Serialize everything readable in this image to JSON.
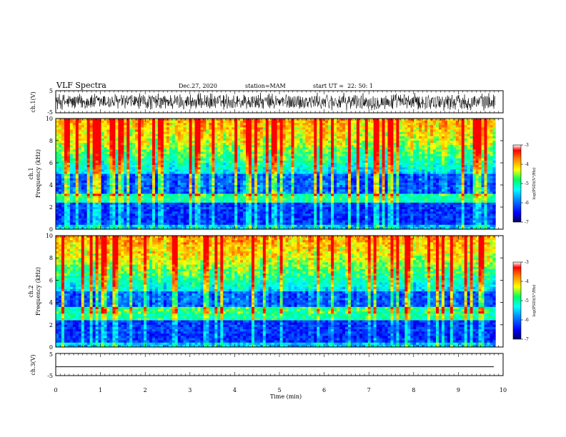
{
  "header": {
    "title": "VLF Spectra",
    "date": "Dec.27, 2020",
    "station": "station=MAM",
    "start": "start UT =  22: 50: 1"
  },
  "colors": {
    "scale": [
      "#000080",
      "#0000ff",
      "#0080ff",
      "#00ffff",
      "#00ff80",
      "#ffff00",
      "#ff8000",
      "#ff0000"
    ]
  },
  "chart_data": [
    {
      "type": "line",
      "name": "ch1-waveform",
      "ylabel": "ch.1(V)",
      "ylim": [
        -5,
        5
      ],
      "yticks": [
        "5",
        "-5"
      ],
      "xlim": [
        0,
        10
      ],
      "description_values": {
        "center": 0.0,
        "typical_amplitude": 3.5
      }
    },
    {
      "type": "heatmap",
      "name": "ch1-spectrogram",
      "ylabel_top": "ch.1",
      "ylabel_bottom": "Frequency (kHz)",
      "ylim": [
        0,
        10
      ],
      "yticks": [
        "0",
        "2",
        "4",
        "6",
        "8",
        "10"
      ],
      "xlim": [
        0,
        9.83
      ],
      "band_kHz": [
        2.4,
        3.2
      ],
      "colorbar": {
        "label": "log(PSD)(V²/Hz)",
        "range": [
          -7,
          -3
        ],
        "ticks": [
          "-3",
          "-4",
          "-5",
          "-6",
          "-7"
        ]
      }
    },
    {
      "type": "heatmap",
      "name": "ch2-spectrogram",
      "ylabel_top": "ch.2",
      "ylabel_bottom": "Frequency (kHz)",
      "ylim": [
        0,
        10
      ],
      "yticks": [
        "0",
        "2",
        "4",
        "6",
        "8",
        "10"
      ],
      "xlim": [
        0,
        9.83
      ],
      "band_kHz": [
        2.5,
        3.5
      ],
      "colorbar": {
        "label": "log(PSD)(V²/Hz)",
        "range": [
          -7,
          -3
        ],
        "ticks": [
          "-3",
          "-4",
          "-5",
          "-6",
          "-7"
        ]
      }
    },
    {
      "type": "line",
      "name": "ch3-waveform",
      "ylabel": "ch.3(V)",
      "ylim": [
        -5,
        5
      ],
      "yticks": [
        "5",
        "-5"
      ],
      "xlim": [
        0,
        10
      ],
      "values": {
        "constant": -1.0
      }
    }
  ],
  "xaxis": {
    "label": "Time (min)",
    "ticks": [
      "0",
      "1",
      "2",
      "3",
      "4",
      "5",
      "6",
      "7",
      "8",
      "9",
      "10"
    ]
  }
}
